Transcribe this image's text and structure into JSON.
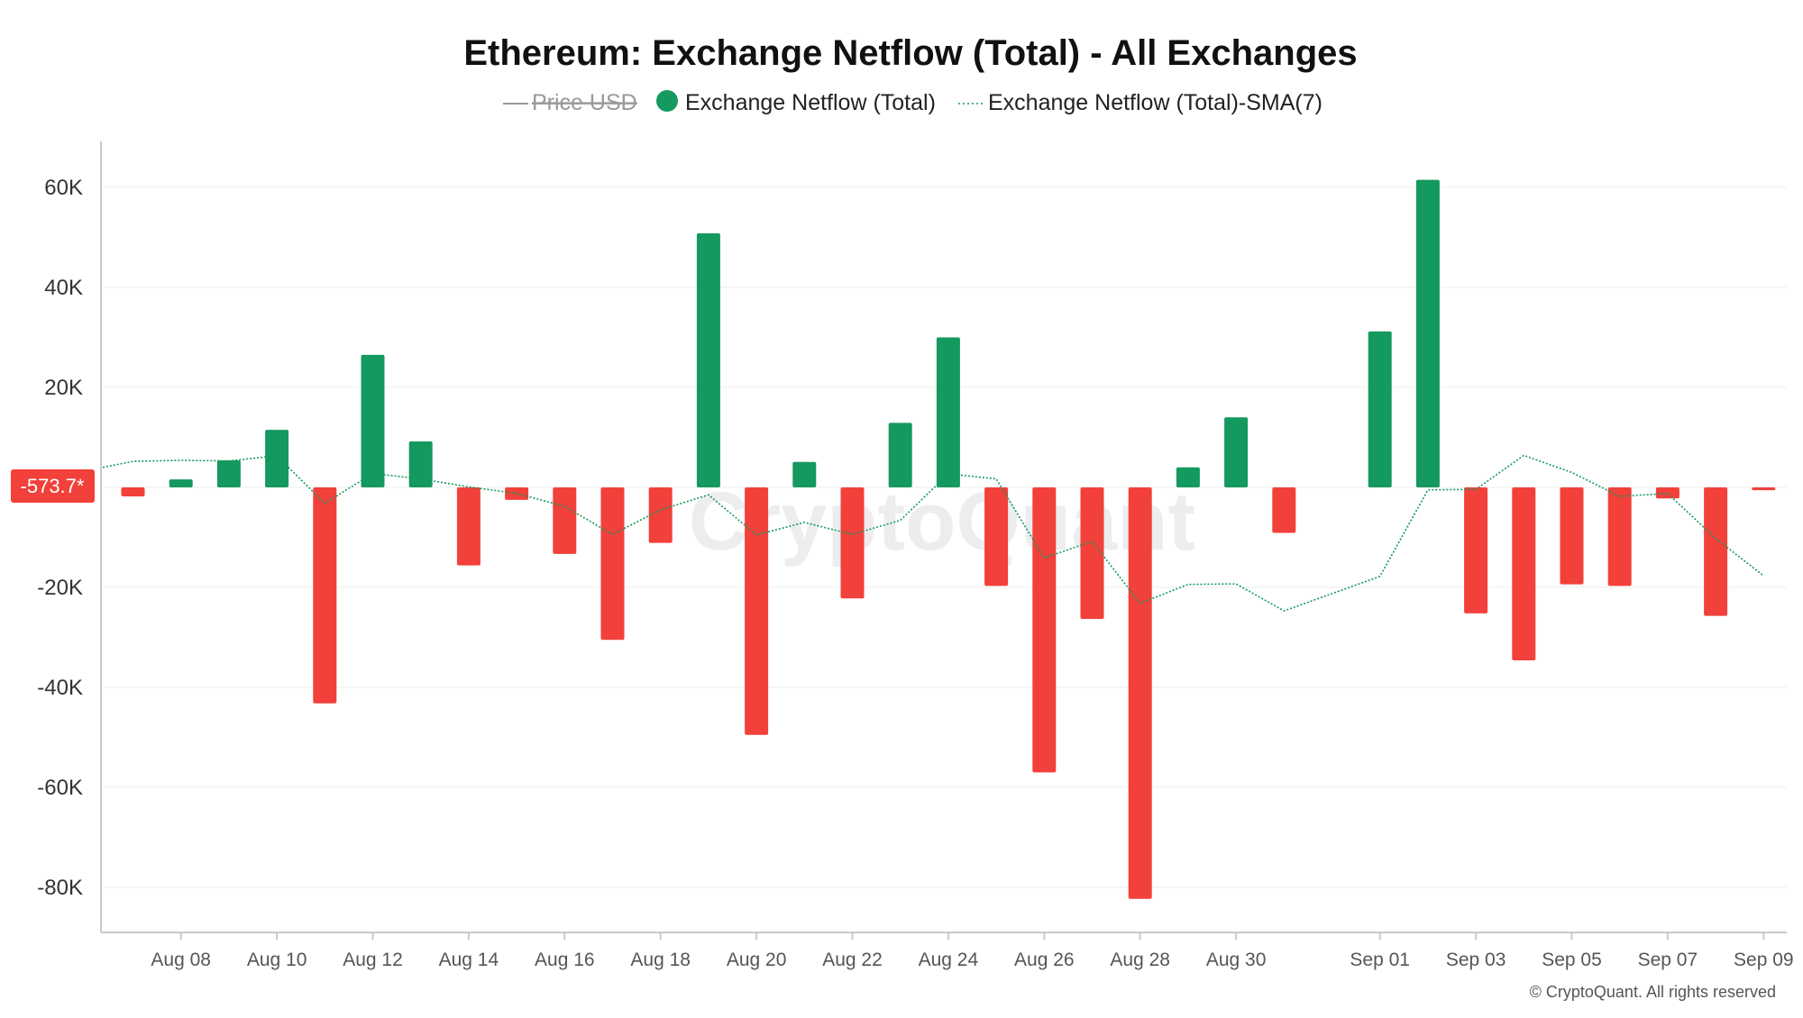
{
  "chart_data": {
    "type": "bar",
    "title": "Ethereum: Exchange Netflow (Total) - All Exchanges",
    "legend": {
      "placement": "top-center",
      "items": [
        {
          "label": "Price USD",
          "state": "hidden",
          "marker": "line"
        },
        {
          "label": "Exchange Netflow (Total)",
          "state": "visible",
          "marker": "dot"
        },
        {
          "label": "Exchange Netflow (Total)-SMA(7)",
          "state": "visible",
          "marker": "dotted-line"
        }
      ]
    },
    "y_axis": {
      "ylim": [
        -90000,
        68000
      ],
      "ticks": [
        60000,
        40000,
        20000,
        -20000,
        -40000,
        -60000,
        -80000
      ],
      "tick_labels": [
        "60K",
        "40K",
        "20K",
        "-20K",
        "-40K",
        "-60K",
        "-80K"
      ],
      "grid": true
    },
    "x_axis": {
      "ticks": [
        "Aug 08",
        "Aug 10",
        "Aug 12",
        "Aug 14",
        "Aug 16",
        "Aug 18",
        "Aug 20",
        "Aug 22",
        "Aug 24",
        "Aug 26",
        "Aug 28",
        "Aug 30",
        "Sep 01",
        "Sep 03",
        "Sep 05",
        "Sep 07",
        "Sep 09"
      ]
    },
    "last_value_label": "-573.7*",
    "series": [
      {
        "name": "Exchange Netflow (Total)",
        "type": "bar",
        "x": [
          "Aug 07",
          "Aug 08",
          "Aug 09",
          "Aug 10",
          "Aug 11",
          "Aug 12",
          "Aug 13",
          "Aug 14",
          "Aug 15",
          "Aug 16",
          "Aug 17",
          "Aug 18",
          "Aug 19",
          "Aug 20",
          "Aug 21",
          "Aug 22",
          "Aug 23",
          "Aug 24",
          "Aug 25",
          "Aug 26",
          "Aug 27",
          "Aug 28",
          "Aug 29",
          "Aug 30",
          "Aug 31",
          "Sep 01",
          "Sep 02",
          "Sep 03",
          "Sep 04",
          "Sep 05",
          "Sep 06",
          "Sep 07",
          "Sep 08",
          "Sep 09"
        ],
        "values": [
          -1800,
          1600,
          5400,
          11500,
          -43200,
          26500,
          9200,
          -15600,
          -2500,
          -13300,
          -30500,
          -11100,
          50800,
          -49500,
          5100,
          -22200,
          12900,
          30000,
          -19700,
          -57000,
          -26300,
          -82300,
          4000,
          14000,
          -9100,
          31200,
          61500,
          -25200,
          -34600,
          -19400,
          -19700,
          -2200,
          -25700,
          -574
        ],
        "colors": {
          "positive": "#14995f",
          "negative": "#f2403a"
        }
      },
      {
        "name": "Exchange Netflow (Total)-SMA(7)",
        "type": "line",
        "style": "dotted",
        "color": "#14995f",
        "x": [
          "Aug 06",
          "Aug 07",
          "Aug 08",
          "Aug 09",
          "Aug 10",
          "Aug 11",
          "Aug 12",
          "Aug 13",
          "Aug 14",
          "Aug 15",
          "Aug 16",
          "Aug 17",
          "Aug 18",
          "Aug 19",
          "Aug 20",
          "Aug 21",
          "Aug 22",
          "Aug 23",
          "Aug 24",
          "Aug 25",
          "Aug 26",
          "Aug 27",
          "Aug 28",
          "Aug 29",
          "Aug 30",
          "Aug 31",
          "Sep 01",
          "Sep 02",
          "Sep 03",
          "Sep 04",
          "Sep 05",
          "Sep 06",
          "Sep 07",
          "Sep 08",
          "Sep 09"
        ],
        "values": [
          4000,
          5200,
          5400,
          5300,
          6300,
          -3200,
          2800,
          1700,
          100,
          -1200,
          -3800,
          -9400,
          -4500,
          -1500,
          -9500,
          -7000,
          -9400,
          -6600,
          2700,
          1700,
          -14100,
          -10800,
          -23200,
          -19400,
          -19300,
          -24700,
          -17800,
          -500,
          -400,
          6400,
          3000,
          -1800,
          -1200,
          -10200,
          -17700
        ]
      }
    ],
    "watermark": "CryptoQuant",
    "copyright": "© CryptoQuant. All rights reserved"
  }
}
